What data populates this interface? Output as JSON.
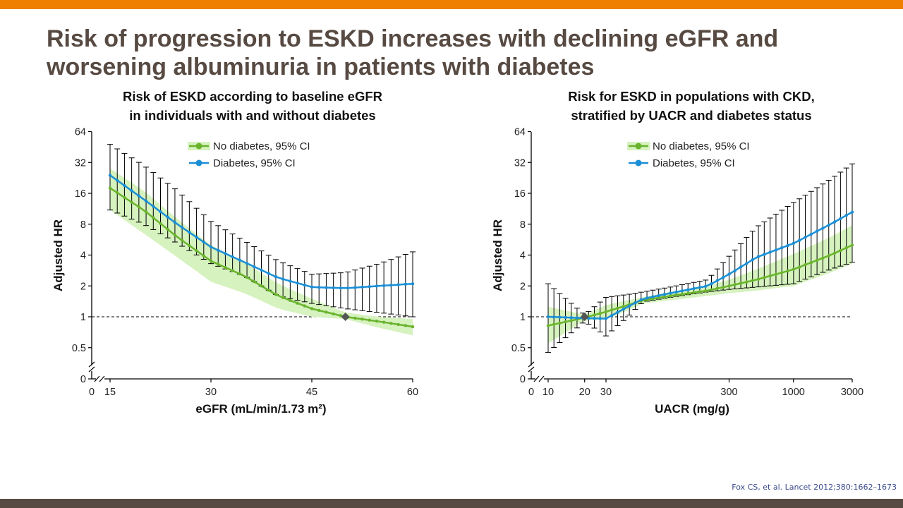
{
  "slide": {
    "title": "Risk of progression to ESKD increases with declining eGFR and worsening albuminuria in patients with diabetes",
    "citation": "Fox CS, et al. Lancet 2012;380:1662–1673",
    "colors": {
      "top_bar": "#ee7f00",
      "bottom_bar": "#574a42",
      "title": "#574a42",
      "no_diabetes": "#6ab42d",
      "no_diabetes_ci": "#d6f2bf",
      "diabetes": "#1b8fd6",
      "reference_marker": "#555555"
    }
  },
  "chart_data": [
    {
      "type": "line",
      "title_lines": [
        "Risk of ESKD according to baseline eGFR",
        "in individuals with and without diabetes"
      ],
      "xlabel": "eGFR (mL/min/1.73 m²)",
      "ylabel": "Adjusted HR",
      "xscale": "linear",
      "yscale": "log2",
      "xlim": [
        15,
        60
      ],
      "ylim": [
        0.5,
        64
      ],
      "x_ticks": [
        0,
        15,
        30,
        45,
        60
      ],
      "x_tick_labels": [
        "0",
        "15",
        "30",
        "45",
        "60"
      ],
      "y_ticks": [
        0,
        0.5,
        1,
        2,
        4,
        8,
        16,
        32,
        64
      ],
      "y_tick_labels": [
        "0",
        "0.5",
        "1",
        "2",
        "4",
        "8",
        "16",
        "32",
        "64"
      ],
      "axis_breaks": [
        "x",
        "y"
      ],
      "reference_line": 1,
      "reference_point": {
        "x": 50,
        "y": 1.0
      },
      "legend": {
        "position": "top-center",
        "entries": [
          "No diabetes, 95% CI",
          "Diabetes, 95% CI"
        ]
      },
      "series": [
        {
          "name": "No diabetes, 95% CI",
          "style": "line-with-shaded-ci",
          "x": [
            15,
            20,
            25,
            30,
            35,
            40,
            45,
            50,
            55,
            60
          ],
          "y": [
            18,
            11,
            6.0,
            3.5,
            2.5,
            1.6,
            1.2,
            1.0,
            0.9,
            0.8
          ],
          "ci_low": [
            11,
            6.5,
            3.8,
            2.2,
            1.7,
            1.2,
            1.0,
            0.95,
            0.78,
            0.66
          ],
          "ci_high": [
            28,
            17,
            9.0,
            5.0,
            3.4,
            2.1,
            1.5,
            1.1,
            1.0,
            0.95
          ]
        },
        {
          "name": "Diabetes, 95% CI",
          "style": "line-with-error-bars",
          "x": [
            15,
            20,
            25,
            30,
            35,
            40,
            45,
            50,
            55,
            60
          ],
          "y": [
            24,
            14,
            8.0,
            4.8,
            3.4,
            2.4,
            1.95,
            1.9,
            2.0,
            2.1
          ],
          "ci_low": [
            11,
            8.0,
            5.2,
            3.3,
            2.5,
            1.6,
            1.35,
            1.2,
            1.1,
            1.0
          ],
          "ci_high": [
            48,
            30,
            17,
            8.5,
            5.5,
            3.5,
            2.6,
            2.7,
            3.3,
            4.3
          ]
        }
      ]
    },
    {
      "type": "line",
      "title_lines": [
        "Risk for ESKD in populations with CKD,",
        "stratified by UACR and diabetes status"
      ],
      "xlabel": "UACR (mg/g)",
      "ylabel": "Adjusted HR",
      "xscale": "log",
      "yscale": "log2",
      "xlim": [
        10,
        3000
      ],
      "ylim": [
        0.5,
        64
      ],
      "x_ticks": [
        0,
        10,
        20,
        30,
        300,
        1000,
        3000
      ],
      "x_tick_labels": [
        "0",
        "10",
        "20",
        "30",
        "300",
        "1000",
        "3000"
      ],
      "y_ticks": [
        0,
        0.5,
        1,
        2,
        4,
        8,
        16,
        32,
        64
      ],
      "y_tick_labels": [
        "0",
        "0.5",
        "1",
        "2",
        "4",
        "8",
        "16",
        "32",
        "64"
      ],
      "axis_breaks": [
        "x",
        "y"
      ],
      "reference_line": 1,
      "reference_point": {
        "x": 20,
        "y": 1.0
      },
      "legend": {
        "position": "top-center",
        "entries": [
          "No diabetes, 95% CI",
          "Diabetes, 95% CI"
        ]
      },
      "series": [
        {
          "name": "No diabetes, 95% CI",
          "style": "line-with-shaded-ci",
          "x": [
            10,
            20,
            30,
            45,
            60,
            100,
            200,
            300,
            500,
            1000,
            2000,
            3000
          ],
          "y": [
            0.82,
            0.98,
            1.12,
            1.3,
            1.45,
            1.6,
            1.8,
            2.0,
            2.3,
            2.9,
            4.0,
            5.0
          ],
          "ci_low": [
            0.55,
            0.92,
            0.95,
            1.15,
            1.35,
            1.45,
            1.6,
            1.7,
            1.8,
            2.0,
            2.7,
            3.3
          ],
          "ci_high": [
            1.25,
            1.05,
            1.3,
            1.45,
            1.55,
            1.75,
            2.0,
            2.3,
            2.9,
            4.1,
            6.0,
            7.8
          ]
        },
        {
          "name": "Diabetes, 95% CI",
          "style": "line-with-error-bars",
          "x": [
            10,
            20,
            30,
            45,
            60,
            100,
            200,
            300,
            500,
            1000,
            2000,
            3000
          ],
          "y": [
            1.0,
            0.97,
            0.96,
            1.25,
            1.5,
            1.7,
            2.0,
            2.6,
            3.8,
            5.2,
            8.0,
            10.5
          ],
          "ci_low": [
            0.45,
            0.9,
            0.65,
            1.0,
            1.4,
            1.55,
            1.75,
            1.85,
            1.95,
            2.1,
            2.9,
            3.4
          ],
          "ci_high": [
            2.1,
            1.05,
            1.55,
            1.65,
            1.75,
            1.95,
            2.3,
            3.9,
            7.5,
            13.0,
            22.0,
            31.0
          ]
        }
      ]
    }
  ]
}
